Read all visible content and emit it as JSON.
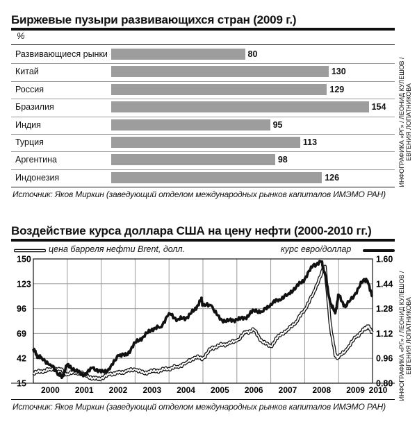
{
  "chart1": {
    "title": "Биржевые пузыри развивающихся стран (2009 г.)",
    "unit_label": "%",
    "source": "Источник: Яков Миркин (заведующий отделом международных рынков капиталов ИМЭМО РАН)",
    "credit_line1": "ИНФОГРАФИКА «РГ» / ЛЕОНИД КУЛЕШОВ /",
    "credit_line2": "ЕВГЕНИЯ ЛОПАТНИКОВА"
  },
  "chart2": {
    "title": "Воздействие курса доллара США на цену нефти (2000-2010 гг.)",
    "legend_oil": "цена барреля нефти Brent, долл.",
    "legend_fx": "курс евро/доллар",
    "source": "Источник: Яков Миркин (заведующий отделом международных рынков капиталов ИМЭМО РАН)",
    "credit_line1": "ИНФОГРАФИКА «РГ» / ЛЕОНИД КУЛЕШОВ /",
    "credit_line2": "ЕВГЕНИЯ ЛОПАТНИКОВА"
  },
  "chart_data": [
    {
      "type": "bar",
      "orientation": "horizontal",
      "title": "Биржевые пузыри развивающихся стран (2009 г.)",
      "ylabel": "%",
      "categories": [
        "Развивающиеся рынки",
        "Китай",
        "Россия",
        "Бразилия",
        "Индия",
        "Турция",
        "Аргентина",
        "Индонезия"
      ],
      "values": [
        80,
        130,
        129,
        154,
        95,
        113,
        98,
        126
      ],
      "xlim": [
        0,
        160
      ],
      "bar_color": "#9d9d9d",
      "grid": false
    },
    {
      "type": "line",
      "title": "Воздействие курса доллара США на цену нефти (2000-2010 гг.)",
      "x_ticks": [
        "2000",
        "2001",
        "2002",
        "2003",
        "2004",
        "2005",
        "2006",
        "2007",
        "2008",
        "2009",
        "2010"
      ],
      "y_left_ticks": [
        15,
        42,
        69,
        96,
        123,
        150
      ],
      "y_left_range": [
        15,
        150
      ],
      "y_right_ticks": [
        "0.80",
        "0.96",
        "1.12",
        "1.28",
        "1.44",
        "1.60"
      ],
      "y_right_range": [
        0.8,
        1.6
      ],
      "grid": true,
      "legend": "top",
      "series": [
        {
          "name": "цена барреля нефти Brent, долл.",
          "axis": "left",
          "style": "double-outline",
          "x": [
            2000.0,
            2000.25,
            2000.5,
            2000.75,
            2001.0,
            2001.25,
            2001.5,
            2001.75,
            2002.0,
            2002.25,
            2002.5,
            2002.75,
            2003.0,
            2003.25,
            2003.5,
            2003.75,
            2004.0,
            2004.25,
            2004.5,
            2004.75,
            2005.0,
            2005.25,
            2005.5,
            2005.75,
            2006.0,
            2006.25,
            2006.5,
            2006.75,
            2007.0,
            2007.25,
            2007.5,
            2007.75,
            2008.0,
            2008.25,
            2008.5,
            2008.6,
            2008.75,
            2008.9,
            2009.0,
            2009.25,
            2009.5,
            2009.75,
            2009.85,
            2010.0
          ],
          "values": [
            26,
            28,
            30,
            31,
            25,
            27,
            25,
            20,
            20,
            25,
            26,
            28,
            30,
            26,
            28,
            29,
            31,
            33,
            37,
            43,
            42,
            53,
            56,
            58,
            61,
            70,
            73,
            60,
            55,
            67,
            73,
            82,
            95,
            112,
            135,
            142,
            80,
            45,
            43,
            52,
            65,
            73,
            77,
            70
          ]
        },
        {
          "name": "курс евро/доллар",
          "axis": "right",
          "style": "thick",
          "x": [
            2000.0,
            2000.1,
            2000.25,
            2000.5,
            2000.75,
            2000.85,
            2001.0,
            2001.25,
            2001.5,
            2001.75,
            2002.0,
            2002.25,
            2002.5,
            2002.75,
            2003.0,
            2003.25,
            2003.5,
            2003.75,
            2004.0,
            2004.25,
            2004.5,
            2004.75,
            2004.95,
            2005.0,
            2005.25,
            2005.5,
            2005.75,
            2006.0,
            2006.25,
            2006.5,
            2006.75,
            2007.0,
            2007.25,
            2007.5,
            2007.75,
            2008.0,
            2008.25,
            2008.5,
            2008.6,
            2008.75,
            2008.9,
            2009.0,
            2009.2,
            2009.5,
            2009.75,
            2009.85,
            2010.0
          ],
          "values": [
            1.02,
            0.98,
            0.96,
            0.92,
            0.86,
            0.84,
            0.92,
            0.88,
            0.85,
            0.9,
            0.87,
            0.89,
            0.98,
            0.98,
            1.06,
            1.1,
            1.15,
            1.16,
            1.25,
            1.21,
            1.22,
            1.27,
            1.34,
            1.3,
            1.3,
            1.21,
            1.2,
            1.21,
            1.22,
            1.27,
            1.26,
            1.31,
            1.34,
            1.37,
            1.42,
            1.47,
            1.56,
            1.58,
            1.5,
            1.32,
            1.25,
            1.37,
            1.29,
            1.38,
            1.47,
            1.46,
            1.36
          ]
        }
      ]
    }
  ]
}
